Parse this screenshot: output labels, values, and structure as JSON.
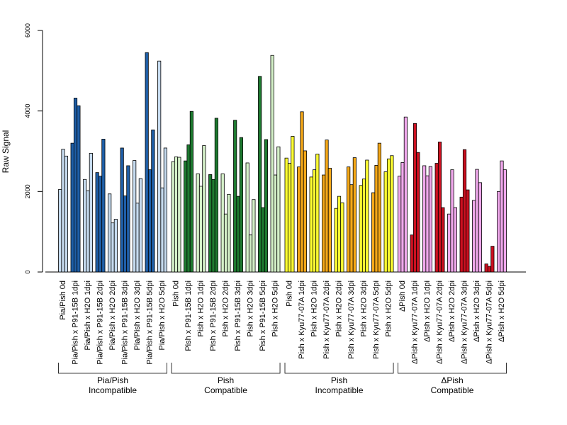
{
  "chart_data": {
    "type": "bar",
    "title": "",
    "xlabel": "",
    "ylabel": "Raw Signal",
    "ylim": [
      0,
      6000
    ],
    "yticks": [
      0,
      2000,
      4000,
      6000
    ],
    "grid": false,
    "legend": "none",
    "categories": [
      "Pia/Pish 0d",
      "Pia/Pish x P91-15B 1dpi",
      "Pia/Pish x H2O 1dpi",
      "Pia/Pish x P91-15B 2dpi",
      "Pia/Pish x H2O 2dpi",
      "Pia/Pish x P91-15B 3dpi",
      "Pia/Pish x H2O 3dpi",
      "Pia/Pish x P91-15B 5dpi",
      "Pia/Pish x H2O 5dpi",
      "Pish 0d",
      "Pish x P91-15B 1dpi",
      "Pish x H2O 1dpi",
      "Pish x P91-15B 2dpi",
      "Pish x H2O 2dpi",
      "Pish x P91-15B 3dpi",
      "Pish x H2O 3dpi",
      "Pish x P91-15B 5dpi",
      "Pish x H2O 5dpi",
      "Pish 0d",
      "Pish x Kyu77-07A 1dpi",
      "Pish x H2O 1dpi",
      "Pish x Kyu77-07A 2dpi",
      "Pish x H2O 2dpi",
      "Pish x Kyu77-07A 3dpi",
      "Pish x H2O 3dpi",
      "Pish x Kyu77-07A 5dpi",
      "Pish x H2O 5dpi",
      "ΔPish 0d",
      "ΔPish x Kyu77-07A 1dpi",
      "ΔPish x H2O 1dpi",
      "ΔPish x Kyu77-07A 2dpi",
      "ΔPish x H2O 2dpi",
      "ΔPish x Kyu77-07A 3dpi",
      "ΔPish x H2O 3dpi",
      "ΔPish x Kyu77-07A 5dpi",
      "ΔPish x H2O 5dpi"
    ],
    "colors": [
      "#c6dbef",
      "#1f5fa8",
      "#d4f0c8",
      "#1e7a30",
      "#ffff33",
      "#f5a818",
      "#f0a8ec",
      "#cc1020"
    ],
    "groups": [
      {
        "line1": "Pia/Pish",
        "line2": "Incompatible",
        "values": [
          [
            2050,
            3050,
            2880
          ],
          [
            3200,
            4320,
            4130
          ],
          [
            2300,
            2020,
            2950
          ],
          [
            2470,
            2380,
            3300
          ],
          [
            1940,
            1220,
            1310
          ],
          [
            3080,
            1890,
            2640
          ],
          [
            2770,
            1710,
            2320
          ],
          [
            5450,
            2540,
            3530
          ],
          [
            5240,
            2090,
            3080
          ]
        ]
      },
      {
        "line1": "Pish",
        "line2": "Compatible",
        "values": [
          [
            2740,
            2860,
            2850
          ],
          [
            2760,
            3160,
            3990
          ],
          [
            2440,
            2130,
            3140
          ],
          [
            2420,
            2300,
            3820
          ],
          [
            2440,
            1440,
            1930
          ],
          [
            3770,
            1880,
            3340
          ],
          [
            2710,
            920,
            1800
          ],
          [
            4860,
            1600,
            3290
          ],
          [
            5380,
            2410,
            3110
          ]
        ]
      },
      {
        "line1": "Pish",
        "line2": "Incompatible",
        "values": [
          [
            2830,
            2700,
            3370
          ],
          [
            2610,
            3980,
            3010
          ],
          [
            2360,
            2540,
            2930
          ],
          [
            2410,
            3280,
            2580
          ],
          [
            1580,
            1880,
            1720
          ],
          [
            2610,
            2170,
            2840
          ],
          [
            2150,
            2310,
            2780
          ],
          [
            1970,
            2650,
            3200
          ],
          [
            2490,
            2810,
            2890
          ]
        ]
      },
      {
        "line1": "ΔPish",
        "line2": "Compatible",
        "values": [
          [
            2380,
            2720,
            3850
          ],
          [
            920,
            3690,
            2970
          ],
          [
            2640,
            2390,
            2620
          ],
          [
            2700,
            3230,
            1600
          ],
          [
            1440,
            2540,
            1600
          ],
          [
            1860,
            3040,
            2040
          ],
          [
            1780,
            2550,
            2220
          ],
          [
            200,
            140,
            640
          ],
          [
            2000,
            2760,
            2540
          ]
        ]
      }
    ]
  }
}
